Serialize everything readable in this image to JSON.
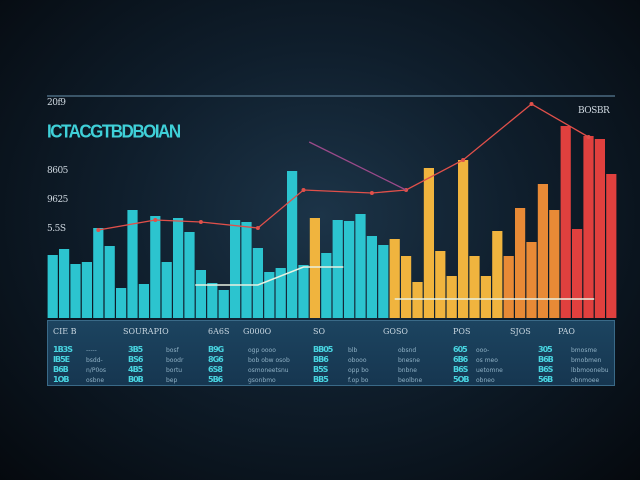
{
  "chart_data": {
    "type": "bar",
    "title": "ICTACGTBDBOIAN",
    "corner_label": "20f9",
    "right_label": "BOSBR",
    "ytick_labels": [
      "8605",
      "9625",
      "5.5S"
    ],
    "ylim": [
      0,
      222
    ],
    "colors": {
      "teal": "#2cc4cf",
      "orange": "#f0b43e",
      "deep_orange": "#e88a36",
      "red": "#e0403e",
      "line": "#e0504a",
      "purple_line": "#9a4a8a",
      "white_line": "#e8f0e0"
    },
    "bars": [
      {
        "v": 63,
        "g": "teal"
      },
      {
        "v": 69,
        "g": "teal"
      },
      {
        "v": 54,
        "g": "teal"
      },
      {
        "v": 56,
        "g": "teal"
      },
      {
        "v": 90,
        "g": "teal"
      },
      {
        "v": 72,
        "g": "teal"
      },
      {
        "v": 30,
        "g": "teal"
      },
      {
        "v": 108,
        "g": "teal"
      },
      {
        "v": 34,
        "g": "teal"
      },
      {
        "v": 102,
        "g": "teal"
      },
      {
        "v": 56,
        "g": "teal"
      },
      {
        "v": 100,
        "g": "teal"
      },
      {
        "v": 86,
        "g": "teal"
      },
      {
        "v": 48,
        "g": "teal"
      },
      {
        "v": 35,
        "g": "teal"
      },
      {
        "v": 28,
        "g": "teal"
      },
      {
        "v": 98,
        "g": "teal"
      },
      {
        "v": 96,
        "g": "teal"
      },
      {
        "v": 70,
        "g": "teal"
      },
      {
        "v": 46,
        "g": "teal"
      },
      {
        "v": 50,
        "g": "teal"
      },
      {
        "v": 147,
        "g": "teal"
      },
      {
        "v": 53,
        "g": "teal"
      },
      {
        "v": 100,
        "g": "orange"
      },
      {
        "v": 65,
        "g": "teal"
      },
      {
        "v": 98,
        "g": "teal"
      },
      {
        "v": 97,
        "g": "teal"
      },
      {
        "v": 104,
        "g": "teal"
      },
      {
        "v": 82,
        "g": "teal"
      },
      {
        "v": 73,
        "g": "teal"
      },
      {
        "v": 79,
        "g": "orange"
      },
      {
        "v": 62,
        "g": "orange"
      },
      {
        "v": 36,
        "g": "orange"
      },
      {
        "v": 150,
        "g": "orange"
      },
      {
        "v": 67,
        "g": "orange"
      },
      {
        "v": 42,
        "g": "orange"
      },
      {
        "v": 158,
        "g": "orange"
      },
      {
        "v": 62,
        "g": "orange"
      },
      {
        "v": 42,
        "g": "orange"
      },
      {
        "v": 87,
        "g": "orange"
      },
      {
        "v": 62,
        "g": "deep_orange"
      },
      {
        "v": 110,
        "g": "deep_orange"
      },
      {
        "v": 76,
        "g": "deep_orange"
      },
      {
        "v": 134,
        "g": "deep_orange"
      },
      {
        "v": 108,
        "g": "deep_orange"
      },
      {
        "v": 192,
        "g": "red"
      },
      {
        "v": 89,
        "g": "red"
      },
      {
        "v": 182,
        "g": "red"
      },
      {
        "v": 179,
        "g": "red"
      },
      {
        "v": 144,
        "g": "red"
      }
    ],
    "series": [
      {
        "name": "trend",
        "color": "line",
        "points": [
          [
            4,
            88
          ],
          [
            9,
            98
          ],
          [
            13,
            96
          ],
          [
            18,
            90
          ],
          [
            22,
            128
          ],
          [
            28,
            125
          ],
          [
            31,
            128
          ],
          [
            36,
            158
          ],
          [
            42,
            214
          ],
          [
            47,
            181
          ]
        ]
      },
      {
        "name": "secondary",
        "color": "purple_line",
        "points": [
          [
            22.5,
            176
          ],
          [
            31,
            128
          ]
        ]
      },
      {
        "name": "baseline-a",
        "color": "white_line",
        "points": [
          [
            12.5,
            33
          ],
          [
            18,
            33
          ],
          [
            22,
            51
          ],
          [
            25.5,
            51
          ]
        ]
      },
      {
        "name": "baseline-b",
        "color": "white_line",
        "points": [
          [
            30,
            19
          ],
          [
            47.5,
            19
          ]
        ]
      }
    ]
  },
  "table": {
    "headers": [
      "CIE B",
      "SOURAPIO",
      "6A6S",
      "G000O",
      "SO",
      "GOSO",
      "POS",
      "SJOS",
      "PAO"
    ],
    "glyph_cols": [
      [
        "1B3S",
        "IB5E",
        "B6B",
        "1OB"
      ],
      [
        "3B5",
        "BS6",
        "4B5",
        "B0B"
      ],
      [
        "B9G",
        "8G6",
        "6S8",
        "5B6"
      ],
      [
        "BB05",
        "BB6",
        "B5S",
        "BB5"
      ],
      [
        "605",
        "6B6",
        "B6S",
        "5OB"
      ],
      [
        "305",
        "B6B",
        "B6S",
        "56B"
      ]
    ],
    "text_cols": [
      [
        "-----",
        "bsdd-",
        "n/P0os",
        "osbne"
      ],
      [
        "bosf",
        "boodr",
        "bortu",
        "bep"
      ],
      [
        "ogp oooo",
        "bob obw osob",
        "osmoneetsnu",
        "gsonbmo"
      ],
      [
        "blb",
        "obooo",
        "opp bo",
        "f.op bo"
      ],
      [
        "obsnd",
        "bnesne",
        "bnbne",
        "beolbne"
      ],
      [
        "ooo-",
        "os meo",
        "uetomne",
        "obneo"
      ],
      [
        "bmosme",
        "bmobmen",
        "lbbmoonebu",
        "obnmoee"
      ]
    ]
  }
}
